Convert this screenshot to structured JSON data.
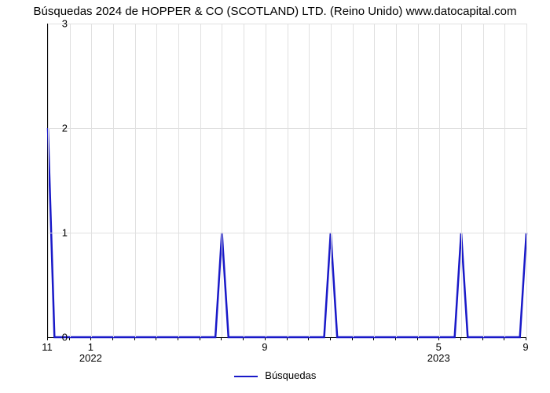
{
  "chart": {
    "type": "line",
    "title": "Búsquedas 2024 de HOPPER & CO (SCOTLAND) LTD. (Reino Unido) www.datocapital.com",
    "title_fontsize": 15,
    "background_color": "#ffffff",
    "grid_color": "#e0e0e0",
    "axis_color": "#000000",
    "label_fontsize": 13,
    "ylim": [
      0,
      3
    ],
    "yticks": [
      0,
      1,
      2,
      3
    ],
    "x_major_visible": [
      {
        "label": "11",
        "x": 0
      },
      {
        "label": "1",
        "x": 2,
        "year": "2022"
      },
      {
        "label": "9",
        "x": 10
      },
      {
        "label": "5",
        "x": 18,
        "year": "2023"
      },
      {
        "label": "9",
        "x": 22
      }
    ],
    "x_count_total": 23,
    "line_color": "#1919c8",
    "line_width": 2.5,
    "values": [
      2,
      0,
      0,
      0,
      0,
      0,
      0,
      0,
      1,
      0,
      0,
      0,
      0,
      1,
      0,
      0,
      0,
      0,
      0,
      1,
      0,
      0,
      1
    ],
    "legend_label": "Búsquedas"
  }
}
